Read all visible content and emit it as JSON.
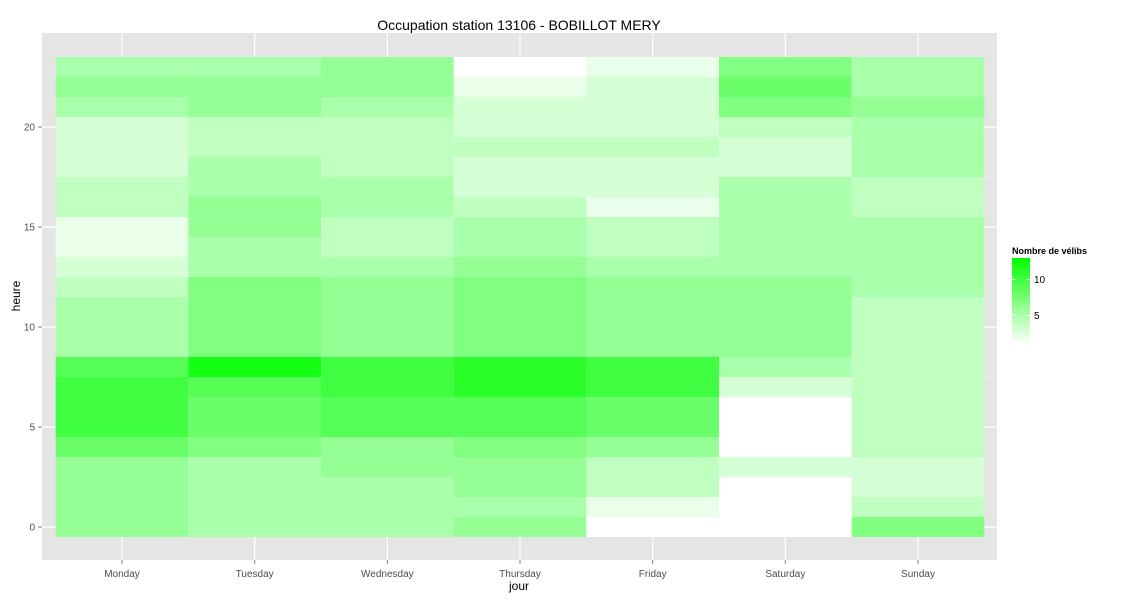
{
  "chart_data": {
    "type": "heatmap",
    "title": "Occupation station 13106 - BOBILLOT MERY",
    "xlabel": "jour",
    "ylabel": "heure",
    "x_categories": [
      "Monday",
      "Tuesday",
      "Wednesday",
      "Thursday",
      "Friday",
      "Saturday",
      "Sunday"
    ],
    "y_range": [
      0,
      23
    ],
    "y_ticks": [
      0,
      5,
      10,
      15,
      20
    ],
    "color_scale": {
      "low": "#ffffff",
      "high": "#00ff00",
      "min": 1,
      "max": 13
    },
    "legend": {
      "title": "Nombre de vélibs",
      "ticks": [
        5,
        10
      ],
      "position": "right"
    },
    "grid": true,
    "values": {
      "Monday": [
        6,
        6,
        6,
        6,
        8,
        10,
        10,
        10,
        9,
        5,
        5,
        5,
        4,
        3,
        2,
        2,
        4,
        4,
        3,
        3,
        3,
        5,
        6,
        5
      ],
      "Tuesday": [
        5,
        5,
        5,
        5,
        7,
        8,
        8,
        9,
        12,
        7,
        7,
        7,
        7,
        5,
        5,
        6,
        6,
        5,
        5,
        4,
        4,
        6,
        6,
        5
      ],
      "Wednesday": [
        5,
        5,
        5,
        6,
        6,
        9,
        9,
        10,
        10,
        6,
        6,
        6,
        6,
        5,
        4,
        4,
        5,
        5,
        4,
        4,
        4,
        5,
        6,
        6
      ],
      "Thursday": [
        6,
        5,
        6,
        6,
        7,
        9,
        9,
        11,
        11,
        7,
        7,
        7,
        7,
        6,
        5,
        5,
        4,
        3,
        3,
        4,
        3,
        3,
        2,
        1
      ],
      "Friday": [
        1,
        2,
        4,
        4,
        6,
        8,
        8,
        10,
        10,
        6,
        6,
        6,
        6,
        5,
        4,
        4,
        2,
        3,
        3,
        4,
        3,
        3,
        3,
        2
      ],
      "Saturday": [
        1,
        1,
        1,
        3,
        1,
        1,
        1,
        3,
        5,
        6,
        6,
        6,
        6,
        5,
        5,
        5,
        5,
        5,
        3,
        3,
        4,
        7,
        8,
        7
      ],
      "Sunday": [
        7,
        4,
        3,
        3,
        4,
        4,
        4,
        4,
        4,
        4,
        4,
        4,
        5,
        5,
        5,
        5,
        4,
        4,
        5,
        5,
        5,
        6,
        5,
        5
      ]
    }
  }
}
